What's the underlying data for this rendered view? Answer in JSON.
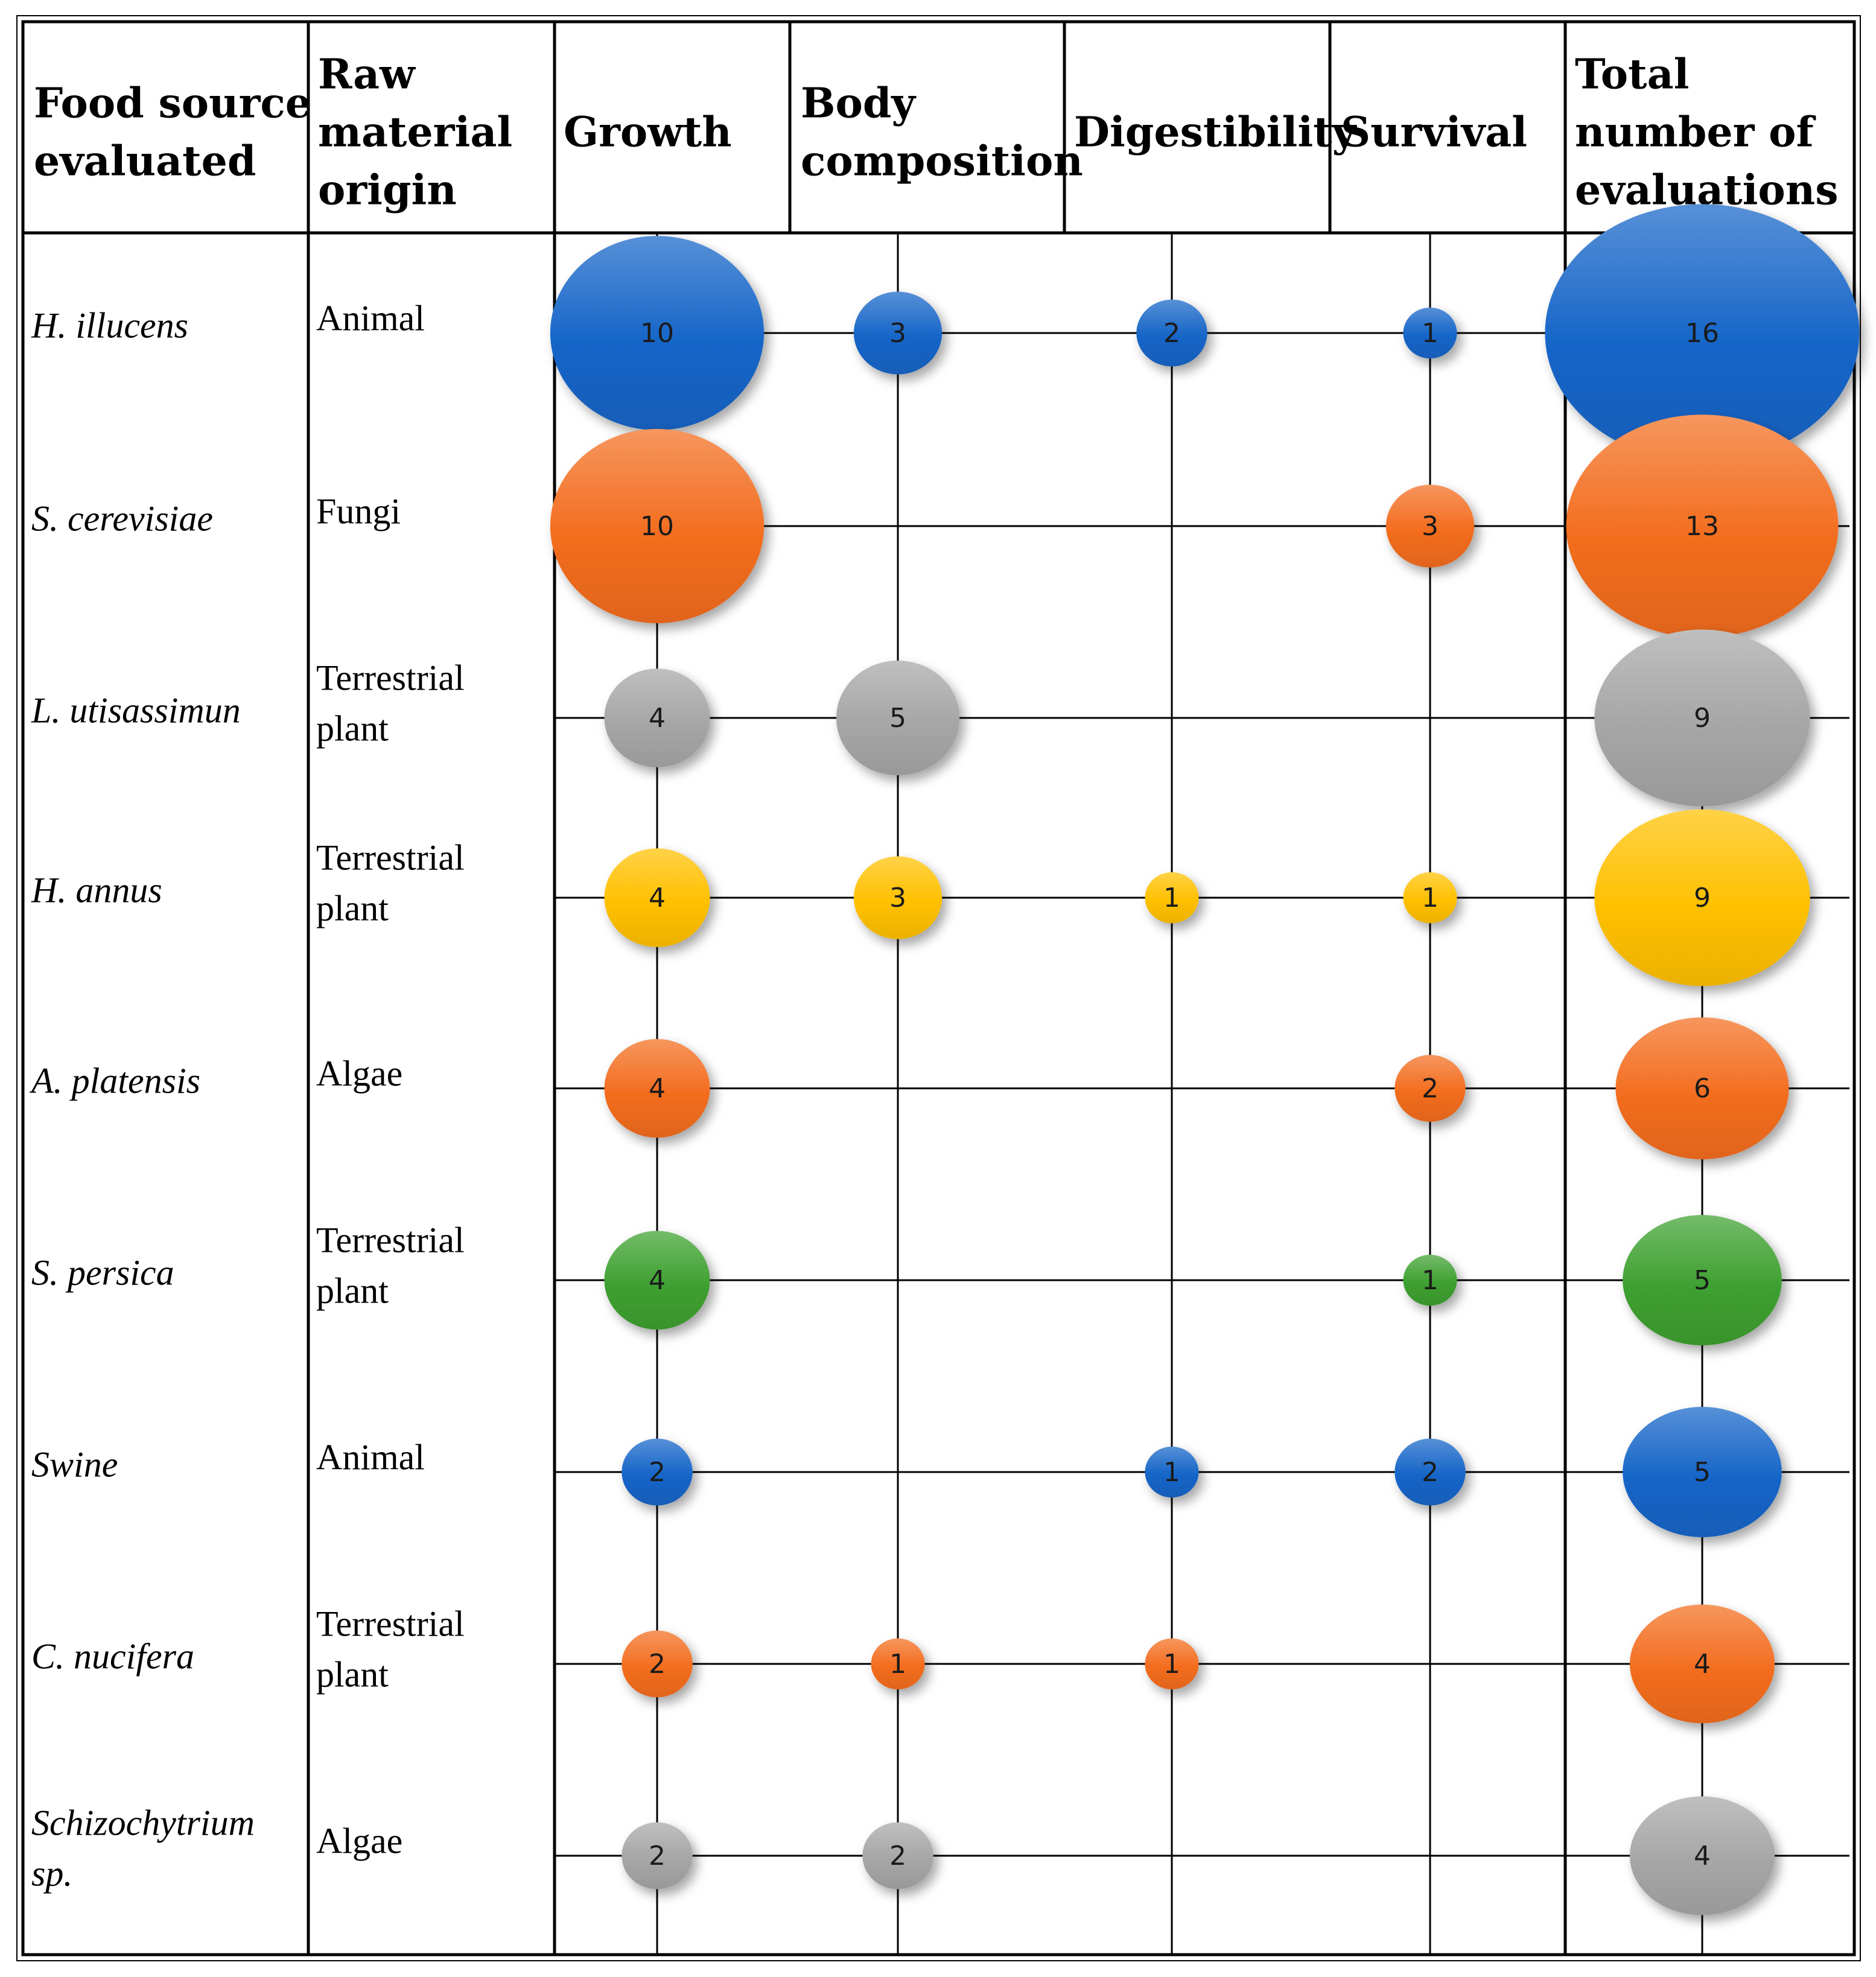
{
  "chart_data": {
    "type": "bubble_matrix",
    "title": "",
    "headers": {
      "food_source": [
        "Food source",
        "evaluated"
      ],
      "origin": [
        "Raw",
        "material",
        "origin"
      ],
      "columns": [
        [
          "Growth"
        ],
        [
          "Body",
          "composition"
        ],
        [
          "Digestibility"
        ],
        [
          "Survival"
        ],
        [
          "Total",
          "number of",
          "evaluations"
        ]
      ]
    },
    "metrics": [
      "Growth",
      "Body composition",
      "Digestibility",
      "Survival",
      "Total number of evaluations"
    ],
    "rows": [
      {
        "name": [
          "H. illucens"
        ],
        "origin": [
          "Animal"
        ],
        "color": "#1565c8",
        "values": [
          10,
          3,
          2,
          1,
          16
        ]
      },
      {
        "name": [
          "S. cerevisiae"
        ],
        "origin": [
          "Fungi"
        ],
        "color": "#f36d1f",
        "values": [
          10,
          null,
          null,
          3,
          13
        ]
      },
      {
        "name": [
          "L. utisassimun"
        ],
        "origin": [
          "Terrestrial",
          "plant"
        ],
        "color": "#a6a6a6",
        "values": [
          4,
          5,
          null,
          null,
          9
        ]
      },
      {
        "name": [
          "H. annus"
        ],
        "origin": [
          "Terrestrial",
          "plant"
        ],
        "color": "#ffc000",
        "values": [
          4,
          3,
          1,
          1,
          9
        ]
      },
      {
        "name": [
          "A. platensis"
        ],
        "origin": [
          "Algae"
        ],
        "color": "#f36d1f",
        "values": [
          4,
          null,
          null,
          2,
          6
        ]
      },
      {
        "name": [
          "S. persica"
        ],
        "origin": [
          "Terrestrial",
          "plant"
        ],
        "color": "#3ea030",
        "values": [
          4,
          null,
          null,
          1,
          5
        ]
      },
      {
        "name": [
          "Swine"
        ],
        "origin": [
          "Animal"
        ],
        "color": "#1565c8",
        "values": [
          2,
          null,
          1,
          2,
          5
        ]
      },
      {
        "name": [
          "C. nucifera"
        ],
        "origin": [
          "Terrestrial",
          "plant"
        ],
        "color": "#f36d1f",
        "values": [
          2,
          1,
          1,
          null,
          4
        ]
      },
      {
        "name": [
          "Schizochytrium",
          "sp."
        ],
        "origin": [
          "Algae"
        ],
        "color": "#a6a6a6",
        "values": [
          2,
          2,
          null,
          null,
          4
        ]
      }
    ]
  }
}
